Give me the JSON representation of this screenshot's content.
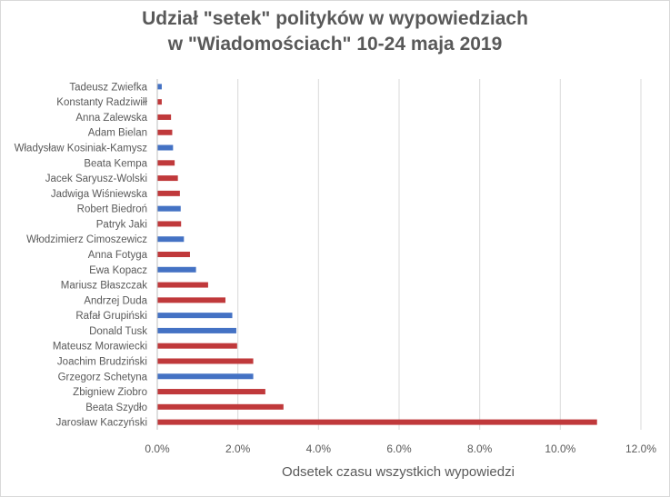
{
  "chart_data": {
    "type": "bar",
    "orientation": "horizontal",
    "title_lines": [
      "Udział \"setek\" polityków w wypowiedziach",
      "w \"Wiadomościach\" 10-24 maja 2019"
    ],
    "xlabel": "Odsetek czasu wszystkich wypowiedzi",
    "ylabel": "",
    "xlim": [
      0,
      12
    ],
    "xticks": [
      "0.0%",
      "2.0%",
      "4.0%",
      "6.0%",
      "8.0%",
      "10.0%",
      "12.0%"
    ],
    "grid": "vertical",
    "legend": "none",
    "colors": {
      "red": "#c0393b",
      "blue": "#4472c4",
      "grid": "#d9d9d9",
      "axis": "#bfbfbf"
    },
    "categories": [
      "Tadeusz Zwiefka",
      "Konstanty Radziwiłł",
      "Anna Zalewska",
      "Adam Bielan",
      "Władysław Kosiniak-Kamysz",
      "Beata Kempa",
      "Jacek Saryusz-Wolski",
      "Jadwiga Wiśniewska",
      "Robert Biedroń",
      "Patryk Jaki",
      "Włodzimierz Cimoszewicz",
      "Anna Fotyga",
      "Ewa Kopacz",
      "Mariusz Błaszczak",
      "Andrzej Duda",
      "Rafał Grupiński",
      "Donald Tusk",
      "Mateusz Morawiecki",
      "Joachim Brudziński",
      "Grzegorz Schetyna",
      "Zbigniew Ziobro",
      "Beata Szydło",
      "Jarosław Kaczyński"
    ],
    "values": [
      0.1,
      0.1,
      0.33,
      0.36,
      0.38,
      0.42,
      0.5,
      0.55,
      0.57,
      0.58,
      0.65,
      0.8,
      0.95,
      1.25,
      1.68,
      1.85,
      1.95,
      1.97,
      2.37,
      2.37,
      2.67,
      3.12,
      10.9
    ],
    "bar_colors": [
      "blue",
      "red",
      "red",
      "red",
      "blue",
      "red",
      "red",
      "red",
      "blue",
      "red",
      "blue",
      "red",
      "blue",
      "red",
      "red",
      "blue",
      "blue",
      "red",
      "red",
      "blue",
      "red",
      "red",
      "red"
    ]
  }
}
